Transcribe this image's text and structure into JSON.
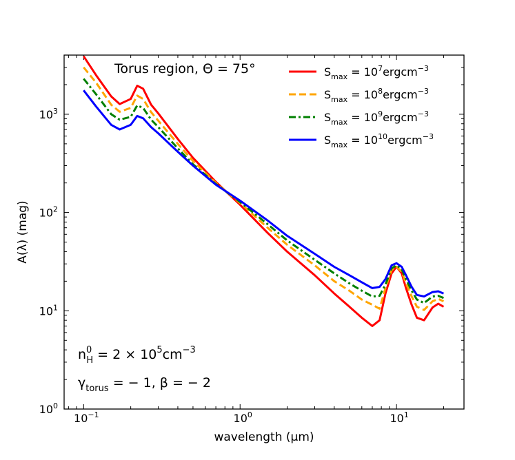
{
  "chart_data": {
    "type": "line",
    "title": "",
    "xlabel": "wavelength (μm)",
    "ylabel": "A(λ) (mag)",
    "xscale": "log",
    "yscale": "log",
    "xlim": [
      0.075,
      27
    ],
    "ylim": [
      1,
      4000
    ],
    "legend_position": "top-right",
    "x_ticks": [
      {
        "value": 0.1,
        "base": "10",
        "exp": "−1"
      },
      {
        "value": 1,
        "base": "10",
        "exp": "0"
      },
      {
        "value": 10,
        "base": "10",
        "exp": "1"
      }
    ],
    "y_ticks": [
      {
        "value": 1,
        "base": "10",
        "exp": "0"
      },
      {
        "value": 10,
        "base": "10",
        "exp": "1"
      },
      {
        "value": 100,
        "base": "10",
        "exp": "2"
      },
      {
        "value": 1000,
        "base": "10",
        "exp": "3"
      }
    ],
    "annotations": {
      "region": "Torus region, Θ = 75°",
      "density_prefix": "n",
      "density_sub": "H",
      "density_sup": "0",
      "density_value": " = 2 × 10",
      "density_exp": "5",
      "density_unit": "cm",
      "density_unit_exp": "−3",
      "gamma_symbol": "γ",
      "gamma_sub": "torus",
      "gamma_rest": " = − 1, β = − 2"
    },
    "series": [
      {
        "name": "S_max = 10^7 erg cm^-3",
        "label_main": "S",
        "label_sub": "max",
        "label_mid": " = 10",
        "label_exp": "7",
        "label_unit": "ergcm",
        "label_unit_exp": "−3",
        "color": "#ff0000",
        "dash": "solid",
        "x": [
          0.1,
          0.12,
          0.15,
          0.17,
          0.2,
          0.22,
          0.24,
          0.27,
          0.3,
          0.4,
          0.5,
          0.7,
          1.0,
          1.5,
          2,
          3,
          4,
          5,
          6,
          7,
          7.8,
          8.5,
          9.3,
          10,
          10.8,
          11.5,
          12.5,
          13.5,
          15,
          17,
          18.5,
          20
        ],
        "values": [
          3900,
          2500,
          1520,
          1270,
          1430,
          1950,
          1820,
          1250,
          1020,
          560,
          360,
          205,
          120,
          62,
          40,
          23,
          15,
          11,
          8.5,
          7.0,
          8.0,
          15,
          24,
          28,
          24,
          17,
          11.5,
          8.5,
          8.0,
          10.8,
          11.8,
          11.0
        ]
      },
      {
        "name": "S_max = 10^8 erg cm^-3",
        "label_main": "S",
        "label_sub": "max",
        "label_mid": " = 10",
        "label_exp": "8",
        "label_unit": "ergcm",
        "label_unit_exp": "−3",
        "color": "#ffa500",
        "dash": "dashed",
        "x": [
          0.1,
          0.12,
          0.15,
          0.17,
          0.2,
          0.22,
          0.24,
          0.27,
          0.3,
          0.4,
          0.5,
          0.7,
          1.0,
          1.5,
          2,
          3,
          4,
          5,
          6,
          7,
          7.8,
          8.5,
          9.3,
          10,
          10.8,
          11.5,
          12.5,
          13.5,
          15,
          17,
          18.5,
          20
        ],
        "values": [
          3000,
          2100,
          1250,
          1060,
          1160,
          1550,
          1430,
          1050,
          860,
          500,
          335,
          200,
          125,
          70,
          47,
          29,
          20,
          16,
          13,
          11.5,
          10.5,
          17,
          26,
          28,
          25,
          19,
          14,
          11,
          10.2,
          12.5,
          13.2,
          12.5
        ]
      },
      {
        "name": "S_max = 10^9 erg cm^-3",
        "label_main": "S",
        "label_sub": "max",
        "label_mid": " = 10",
        "label_exp": "9",
        "label_unit": "ergcm",
        "label_unit_exp": "−3",
        "color": "#008000",
        "dash": "dashdot",
        "x": [
          0.1,
          0.12,
          0.15,
          0.17,
          0.2,
          0.22,
          0.24,
          0.27,
          0.3,
          0.4,
          0.5,
          0.7,
          1.0,
          1.5,
          2,
          3,
          4,
          5,
          6,
          7,
          7.8,
          8.5,
          9.3,
          10,
          10.8,
          11.5,
          12.5,
          13.5,
          15,
          17,
          18.5,
          20
        ],
        "values": [
          2300,
          1600,
          1000,
          880,
          940,
          1230,
          1160,
          880,
          740,
          450,
          310,
          195,
          128,
          76,
          52,
          33,
          24,
          19,
          16,
          14,
          14.2,
          18.5,
          27,
          29,
          26.5,
          21,
          16,
          13,
          12,
          14,
          14.2,
          13.5
        ]
      },
      {
        "name": "S_max = 10^10 erg cm^-3",
        "label_main": "S",
        "label_sub": "max",
        "label_mid": " = 10",
        "label_exp": "10",
        "label_unit": "ergcm",
        "label_unit_exp": "−3",
        "color": "#0000ff",
        "dash": "solid",
        "x": [
          0.1,
          0.12,
          0.15,
          0.17,
          0.2,
          0.22,
          0.24,
          0.27,
          0.3,
          0.4,
          0.5,
          0.7,
          1.0,
          1.5,
          2,
          3,
          4,
          5,
          6,
          7,
          7.8,
          8.5,
          9.3,
          10,
          10.8,
          11.5,
          12.5,
          13.5,
          15,
          17,
          18.5,
          20
        ],
        "values": [
          1750,
          1200,
          780,
          700,
          780,
          960,
          910,
          740,
          640,
          415,
          300,
          192,
          132,
          83,
          58,
          38,
          28,
          23,
          19.5,
          17,
          17.5,
          21,
          29,
          30.5,
          28,
          23,
          17.5,
          14.5,
          14,
          15.5,
          15.8,
          15
        ]
      }
    ]
  }
}
